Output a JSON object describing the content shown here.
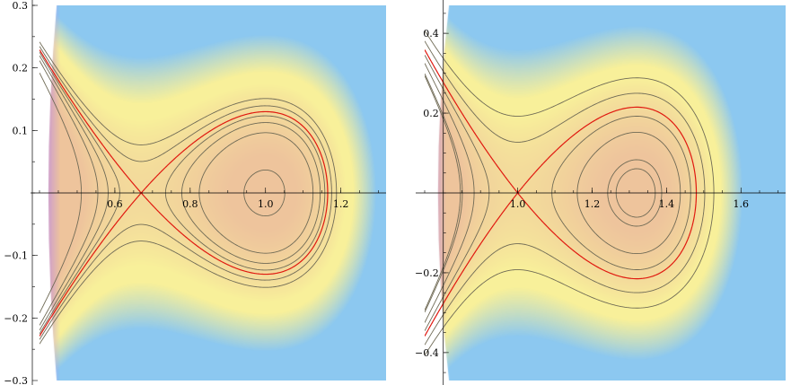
{
  "chart_data": [
    {
      "type": "contour",
      "xlim": [
        0.4,
        1.32
      ],
      "ylim": [
        -0.3,
        0.3
      ],
      "x_ticks": [
        0.6,
        0.8,
        1.0,
        1.2
      ],
      "x_tick_labels": [
        "0.6",
        "0.8",
        "1.0",
        "1.2"
      ],
      "y_ticks": [
        -0.3,
        -0.2,
        -0.1,
        0.1,
        0.2,
        0.3
      ],
      "y_tick_labels": [
        "-0.3",
        "-0.2",
        "-0.1",
        "0.1",
        "0.2",
        "0.3"
      ],
      "saddle": [
        0.67,
        0
      ],
      "center": [
        1.0,
        0
      ],
      "separatrix_right_x": 1.165,
      "separatrix_max_y": 0.13,
      "contour_levels_inside": [
        0.55,
        0.75,
        0.9
      ],
      "contour_levels_outside": [
        1.15,
        1.35
      ],
      "inner_x_intercepts": [
        0.83,
        0.87,
        0.95
      ],
      "outer_x_intercepts": [
        0.585,
        0.545
      ],
      "colors": {
        "separatrix": "#e0180f",
        "contours": "#6f6a55",
        "background_center": "#eec49a",
        "background_edge": "#f6f09a",
        "edge_violet": "#b884ee",
        "corner_blue": "#8cc8f0"
      }
    },
    {
      "type": "contour",
      "xlim": [
        0.75,
        1.72
      ],
      "ylim": [
        -0.47,
        0.47
      ],
      "x_ticks": [
        1.0,
        1.2,
        1.4,
        1.6
      ],
      "x_tick_labels": [
        "1.0",
        "1.2",
        "1.4",
        "1.6"
      ],
      "y_ticks": [
        -0.4,
        -0.2,
        0.2,
        0.4
      ],
      "y_tick_labels": [
        "-0.4",
        "-0.2",
        "0.2",
        "0.4"
      ],
      "saddle": [
        1.0,
        0
      ],
      "center": [
        1.32,
        0
      ],
      "separatrix_right_x": 1.48,
      "separatrix_max_y": 0.215,
      "contour_levels_inside": [
        0.15,
        0.5,
        0.8
      ],
      "contour_levels_outside": [
        1.35,
        1.8
      ],
      "inner_x_intercepts": [
        1.3,
        1.2,
        1.07
      ],
      "outer_x_intercepts": [
        0.93,
        0.88
      ],
      "colors": {
        "separatrix": "#e0180f",
        "contours": "#6f6a55",
        "background_center": "#eec49a",
        "background_edge": "#f6f09a",
        "edge_violet": "#b884ee",
        "corner_blue": "#8cc8f0"
      }
    }
  ]
}
